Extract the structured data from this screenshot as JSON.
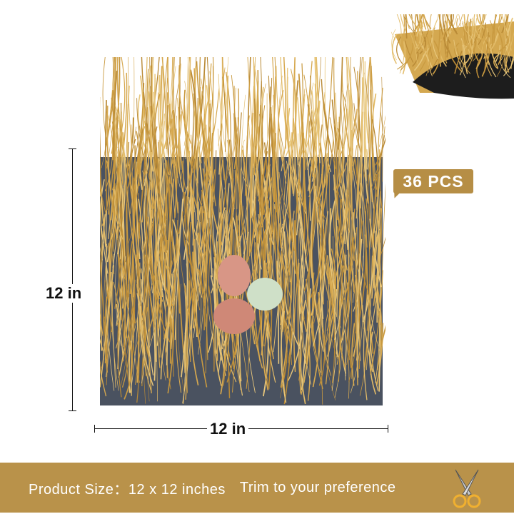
{
  "product": {
    "height_label": "12 in",
    "width_label": "12 in",
    "quantity_badge": "36 PCS",
    "banner": {
      "size_text": "Product Size：12 x 12 inches",
      "trim_text": "Trim to your preference"
    }
  },
  "icons": {
    "banner_icon": "scissors-icon"
  },
  "colors": {
    "banner": "#b9924a",
    "badge": "#b68e45",
    "grass": "#d6a84f",
    "backing": "#3a3f48"
  }
}
